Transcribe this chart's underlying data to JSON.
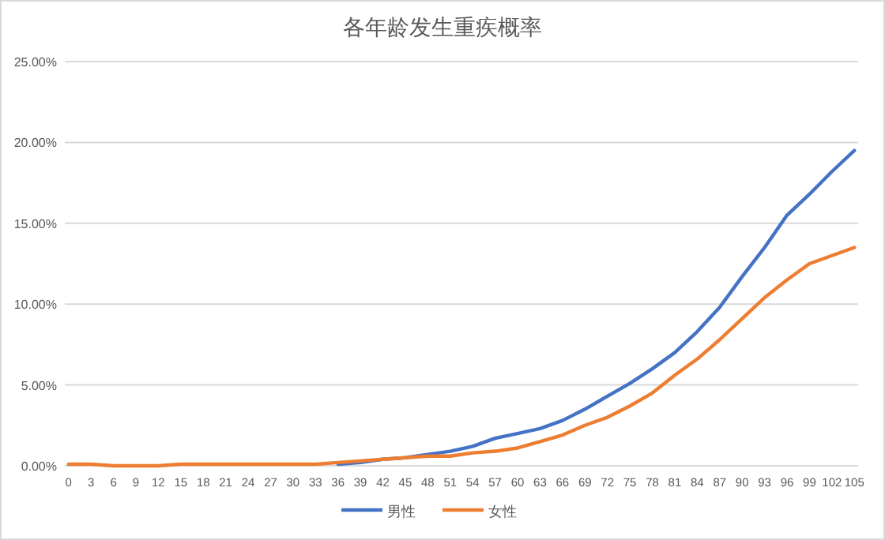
{
  "chart_data": {
    "type": "line",
    "title": "各年龄发生重疾概率",
    "x": [
      0,
      3,
      6,
      9,
      12,
      15,
      18,
      21,
      24,
      27,
      30,
      33,
      36,
      39,
      42,
      45,
      48,
      51,
      54,
      57,
      60,
      63,
      66,
      69,
      72,
      75,
      78,
      81,
      84,
      87,
      90,
      93,
      96,
      99,
      102,
      105
    ],
    "xlim": [
      -0.5,
      105.5
    ],
    "xticks": [
      0,
      3,
      6,
      9,
      12,
      15,
      18,
      21,
      24,
      27,
      30,
      33,
      36,
      39,
      42,
      45,
      48,
      51,
      54,
      57,
      60,
      63,
      66,
      69,
      72,
      75,
      78,
      81,
      84,
      87,
      90,
      93,
      96,
      99,
      102,
      105
    ],
    "ylim": [
      0,
      25
    ],
    "yticks": [
      {
        "value": 0,
        "label": "0.00%"
      },
      {
        "value": 5,
        "label": "5.00%"
      },
      {
        "value": 10,
        "label": "10.00%"
      },
      {
        "value": 15,
        "label": "15.00%"
      },
      {
        "value": 20,
        "label": "20.00%"
      },
      {
        "value": 25,
        "label": "25.00%"
      }
    ],
    "grid": "y",
    "legend": "bottom",
    "marker": "none",
    "line_style": "solid",
    "series": [
      {
        "name": "男性",
        "color": "#4472c4",
        "values": [
          null,
          null,
          null,
          null,
          null,
          null,
          null,
          null,
          null,
          null,
          null,
          null,
          0.1,
          0.2,
          0.4,
          0.5,
          0.7,
          0.9,
          1.2,
          1.7,
          2.0,
          2.3,
          2.8,
          3.5,
          4.3,
          5.1,
          6.0,
          7.0,
          8.3,
          9.8,
          11.7,
          13.5,
          15.5,
          16.8,
          18.2,
          19.5
        ]
      },
      {
        "name": "女性",
        "color": "#ed7d31",
        "values": [
          0.1,
          0.1,
          0.0,
          0.0,
          0.0,
          0.1,
          0.1,
          0.1,
          0.1,
          0.1,
          0.1,
          0.1,
          0.2,
          0.3,
          0.4,
          0.5,
          0.6,
          0.6,
          0.8,
          0.9,
          1.1,
          1.5,
          1.9,
          2.5,
          3.0,
          3.7,
          4.5,
          5.6,
          6.6,
          7.8,
          9.1,
          10.4,
          11.5,
          12.5,
          13.0,
          13.5
        ]
      }
    ]
  }
}
